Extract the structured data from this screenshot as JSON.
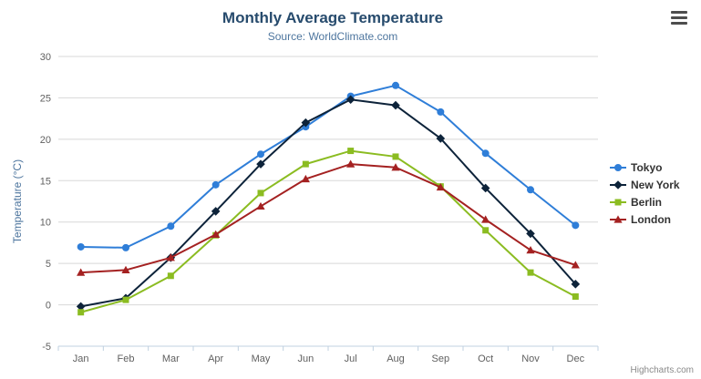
{
  "credits": {
    "label": "Highcharts.com"
  },
  "chart_data": {
    "type": "line",
    "title": "Monthly Average Temperature",
    "subtitle": "Source: WorldClimate.com",
    "categories": [
      "Jan",
      "Feb",
      "Mar",
      "Apr",
      "May",
      "Jun",
      "Jul",
      "Aug",
      "Sep",
      "Oct",
      "Nov",
      "Dec"
    ],
    "xlabel": "",
    "ylabel": "Temperature (°C)",
    "ylim": [
      -5,
      30
    ],
    "ytick_interval": 5,
    "grid": true,
    "legend_position": "right",
    "grid_color": "#d8d8d8",
    "axis_line_color": "#c0d0e0",
    "title_color": "#274b6d",
    "subtitle_color": "#4d759e",
    "series": [
      {
        "name": "Tokyo",
        "color": "#2f7ed8",
        "marker": "circle",
        "values": [
          7.0,
          6.9,
          9.5,
          14.5,
          18.2,
          21.5,
          25.2,
          26.5,
          23.3,
          18.3,
          13.9,
          9.6
        ]
      },
      {
        "name": "New York",
        "color": "#0d233a",
        "marker": "diamond",
        "values": [
          -0.2,
          0.8,
          5.7,
          11.3,
          17.0,
          22.0,
          24.8,
          24.1,
          20.1,
          14.1,
          8.6,
          2.5
        ]
      },
      {
        "name": "Berlin",
        "color": "#8bbc21",
        "marker": "square",
        "values": [
          -0.9,
          0.6,
          3.5,
          8.4,
          13.5,
          17.0,
          18.6,
          17.9,
          14.3,
          9.0,
          3.9,
          1.0
        ]
      },
      {
        "name": "London",
        "color": "#a42121",
        "marker": "triangle",
        "values": [
          3.9,
          4.2,
          5.7,
          8.5,
          11.9,
          15.2,
          17.0,
          16.6,
          14.2,
          10.3,
          6.6,
          4.8
        ]
      }
    ]
  }
}
